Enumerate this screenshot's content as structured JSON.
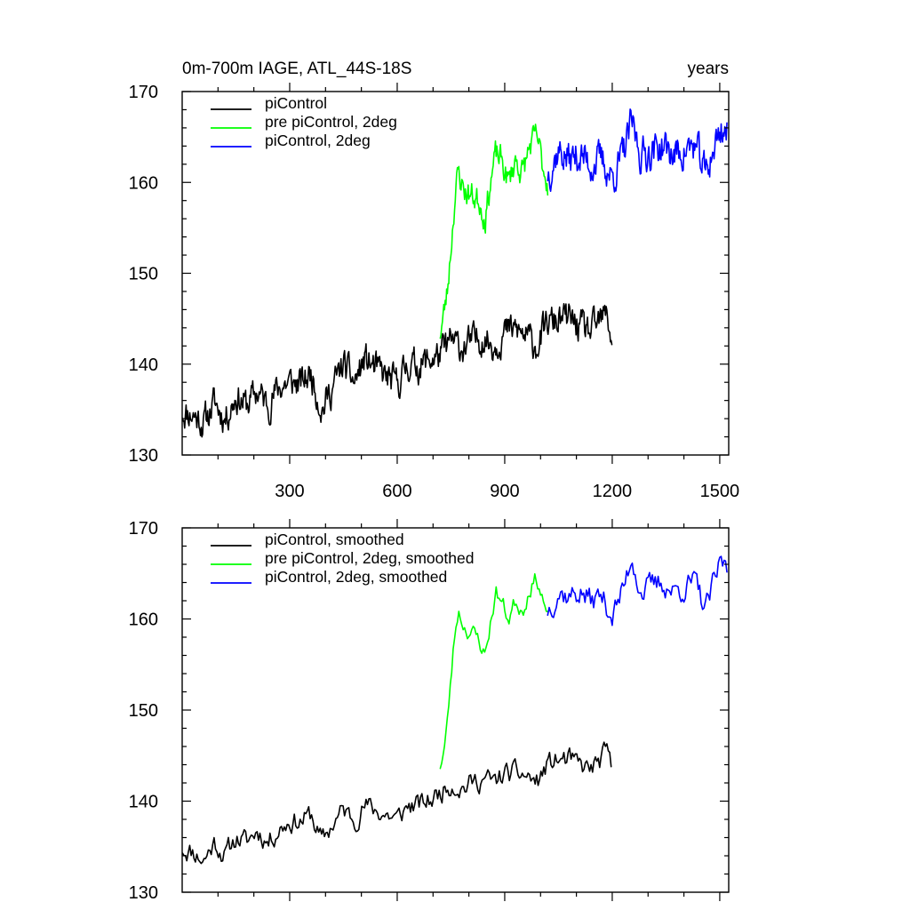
{
  "chart_data": [
    {
      "type": "line",
      "title_left": "0m-700m IAGE, ATL_44S-18S",
      "title_right": "years",
      "xlim": [
        0,
        1525
      ],
      "ylim": [
        130,
        170
      ],
      "xticks": [
        300,
        600,
        900,
        1200,
        1500
      ],
      "show_xtick_labels": true,
      "yticks": [
        130,
        140,
        150,
        160,
        170
      ],
      "legend_position": "top-left",
      "series": [
        {
          "name": "piControl",
          "color": "#000000",
          "x_start": 1,
          "x_end": 1200,
          "step": 2,
          "anchors": [
            [
              1,
              134.8
            ],
            [
              30,
              134.5
            ],
            [
              60,
              133.5
            ],
            [
              90,
              135.8
            ],
            [
              120,
              134.0
            ],
            [
              150,
              136.5
            ],
            [
              180,
              135.5
            ],
            [
              210,
              137.0
            ],
            [
              240,
              135.5
            ],
            [
              270,
              137.5
            ],
            [
              300,
              138.0
            ],
            [
              330,
              137.8
            ],
            [
              360,
              139.0
            ],
            [
              390,
              135.0
            ],
            [
              420,
              137.5
            ],
            [
              450,
              140.0
            ],
            [
              480,
              138.0
            ],
            [
              510,
              140.5
            ],
            [
              540,
              139.5
            ],
            [
              570,
              138.5
            ],
            [
              600,
              137.8
            ],
            [
              630,
              140.0
            ],
            [
              660,
              139.8
            ],
            [
              690,
              140.5
            ],
            [
              720,
              141.0
            ],
            [
              750,
              142.5
            ],
            [
              780,
              141.8
            ],
            [
              810,
              142.5
            ],
            [
              840,
              143.0
            ],
            [
              870,
              142.0
            ],
            [
              900,
              143.5
            ],
            [
              930,
              143.8
            ],
            [
              960,
              143.0
            ],
            [
              990,
              142.0
            ],
            [
              1020,
              144.5
            ],
            [
              1050,
              144.8
            ],
            [
              1080,
              145.0
            ],
            [
              1110,
              144.0
            ],
            [
              1140,
              143.5
            ],
            [
              1170,
              144.8
            ],
            [
              1185,
              145.5
            ],
            [
              1200,
              142.5
            ]
          ],
          "noise": 1.6,
          "seed": 11
        },
        {
          "name": "pre piControl, 2deg",
          "color": "#00ff00",
          "x_start": 720,
          "x_end": 1020,
          "step": 2,
          "anchors": [
            [
              720,
              143.5
            ],
            [
              730,
              145.5
            ],
            [
              740,
              148.0
            ],
            [
              750,
              153.0
            ],
            [
              760,
              158.0
            ],
            [
              770,
              161.0
            ],
            [
              790,
              159.0
            ],
            [
              810,
              158.5
            ],
            [
              830,
              158.0
            ],
            [
              845,
              156.0
            ],
            [
              860,
              160.0
            ],
            [
              875,
              163.0
            ],
            [
              890,
              162.5
            ],
            [
              910,
              160.0
            ],
            [
              930,
              162.5
            ],
            [
              950,
              161.0
            ],
            [
              970,
              164.0
            ],
            [
              990,
              165.0
            ],
            [
              1005,
              162.0
            ],
            [
              1020,
              160.0
            ]
          ],
          "noise": 1.4,
          "seed": 23
        },
        {
          "name": "piControl, 2deg",
          "color": "#0000ff",
          "x_start": 1020,
          "x_end": 1520,
          "step": 2,
          "anchors": [
            [
              1020,
              161.0
            ],
            [
              1050,
              163.5
            ],
            [
              1080,
              162.5
            ],
            [
              1110,
              163.0
            ],
            [
              1140,
              162.0
            ],
            [
              1170,
              162.5
            ],
            [
              1200,
              160.5
            ],
            [
              1230,
              163.0
            ],
            [
              1255,
              166.5
            ],
            [
              1280,
              163.0
            ],
            [
              1310,
              163.5
            ],
            [
              1340,
              164.0
            ],
            [
              1370,
              163.0
            ],
            [
              1400,
              163.5
            ],
            [
              1430,
              164.0
            ],
            [
              1460,
              161.0
            ],
            [
              1490,
              164.5
            ],
            [
              1505,
              166.0
            ],
            [
              1520,
              165.5
            ]
          ],
          "noise": 1.8,
          "seed": 37
        }
      ]
    },
    {
      "type": "line",
      "xlim": [
        0,
        1525
      ],
      "ylim": [
        130,
        170
      ],
      "xticks": [
        300,
        600,
        900,
        1200,
        1500
      ],
      "show_xtick_labels": false,
      "yticks": [
        130,
        140,
        150,
        160,
        170
      ],
      "legend_position": "top-left",
      "series": [
        {
          "name": "piControl, smoothed",
          "color": "#000000",
          "x_start": 1,
          "x_end": 1200,
          "step": 4,
          "anchors": [
            [
              1,
              134.8
            ],
            [
              30,
              134.5
            ],
            [
              60,
              133.5
            ],
            [
              90,
              135.5
            ],
            [
              120,
              134.0
            ],
            [
              150,
              136.0
            ],
            [
              180,
              135.5
            ],
            [
              210,
              136.8
            ],
            [
              240,
              135.5
            ],
            [
              270,
              137.0
            ],
            [
              300,
              137.8
            ],
            [
              330,
              137.8
            ],
            [
              360,
              138.5
            ],
            [
              390,
              135.5
            ],
            [
              420,
              137.5
            ],
            [
              450,
              139.0
            ],
            [
              480,
              138.0
            ],
            [
              510,
              139.5
            ],
            [
              540,
              139.0
            ],
            [
              570,
              138.5
            ],
            [
              600,
              138.0
            ],
            [
              630,
              139.5
            ],
            [
              660,
              139.5
            ],
            [
              690,
              140.0
            ],
            [
              720,
              141.0
            ],
            [
              750,
              142.0
            ],
            [
              780,
              141.5
            ],
            [
              810,
              142.0
            ],
            [
              840,
              142.5
            ],
            [
              870,
              142.0
            ],
            [
              900,
              143.0
            ],
            [
              930,
              143.0
            ],
            [
              960,
              142.8
            ],
            [
              990,
              142.0
            ],
            [
              1020,
              144.0
            ],
            [
              1050,
              144.5
            ],
            [
              1080,
              144.5
            ],
            [
              1110,
              143.8
            ],
            [
              1140,
              143.5
            ],
            [
              1170,
              144.5
            ],
            [
              1185,
              145.5
            ],
            [
              1200,
              143.0
            ]
          ],
          "noise": 1.1,
          "seed": 11
        },
        {
          "name": "pre piControl, 2deg, smoothed",
          "color": "#00ff00",
          "x_start": 720,
          "x_end": 1020,
          "step": 4,
          "anchors": [
            [
              720,
              144.0
            ],
            [
              730,
              145.5
            ],
            [
              740,
              148.5
            ],
            [
              750,
              153.5
            ],
            [
              760,
              158.0
            ],
            [
              770,
              161.0
            ],
            [
              790,
              159.0
            ],
            [
              810,
              158.5
            ],
            [
              830,
              157.5
            ],
            [
              845,
              156.0
            ],
            [
              860,
              159.5
            ],
            [
              875,
              163.0
            ],
            [
              890,
              162.0
            ],
            [
              910,
              160.0
            ],
            [
              930,
              162.0
            ],
            [
              950,
              161.0
            ],
            [
              970,
              163.5
            ],
            [
              990,
              164.5
            ],
            [
              1005,
              162.5
            ],
            [
              1020,
              160.0
            ]
          ],
          "noise": 0.9,
          "seed": 23
        },
        {
          "name": "piControl, 2deg, smoothed",
          "color": "#0000ff",
          "x_start": 1020,
          "x_end": 1520,
          "step": 4,
          "anchors": [
            [
              1020,
              161.0
            ],
            [
              1050,
              163.0
            ],
            [
              1080,
              162.5
            ],
            [
              1110,
              163.0
            ],
            [
              1140,
              162.0
            ],
            [
              1170,
              162.5
            ],
            [
              1200,
              160.5
            ],
            [
              1230,
              163.0
            ],
            [
              1255,
              167.0
            ],
            [
              1280,
              163.0
            ],
            [
              1310,
              163.5
            ],
            [
              1340,
              164.0
            ],
            [
              1370,
              163.0
            ],
            [
              1400,
              163.5
            ],
            [
              1430,
              164.0
            ],
            [
              1460,
              161.0
            ],
            [
              1490,
              164.5
            ],
            [
              1505,
              166.5
            ],
            [
              1520,
              165.5
            ]
          ],
          "noise": 1.3,
          "seed": 37
        }
      ]
    }
  ]
}
